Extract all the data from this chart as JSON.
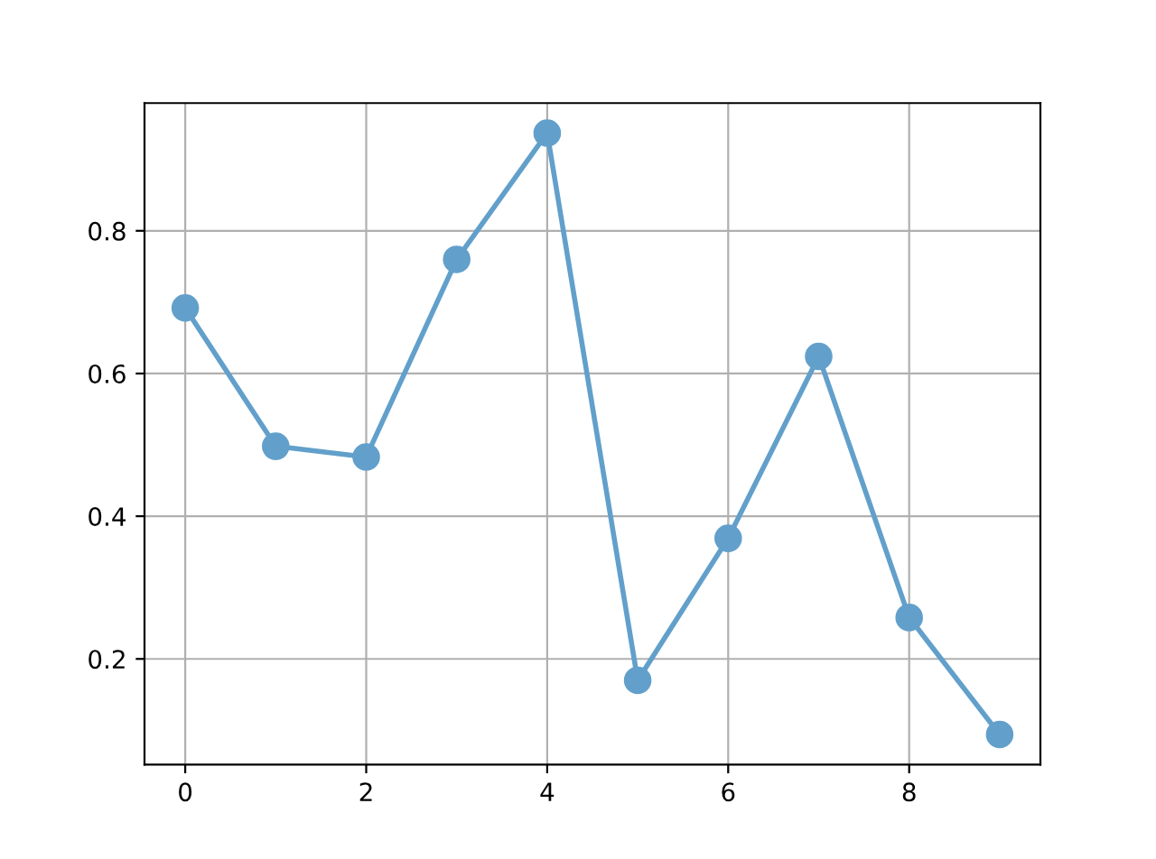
{
  "chart_data": {
    "type": "line",
    "x": [
      0,
      1,
      2,
      3,
      4,
      5,
      6,
      7,
      8,
      9
    ],
    "series": [
      {
        "color": "#62a0cb",
        "values": [
          0.692,
          0.498,
          0.483,
          0.76,
          0.937,
          0.17,
          0.369,
          0.624,
          0.258,
          0.094
        ]
      }
    ],
    "xlim": [
      -0.45,
      9.45
    ],
    "xticks": [
      0,
      2,
      4,
      6,
      8
    ],
    "ylim": [
      0.052,
      0.979
    ],
    "yticks": [
      0.2,
      0.4,
      0.6,
      0.8
    ],
    "grid": true,
    "marker": "circle",
    "line_style": "solid"
  }
}
